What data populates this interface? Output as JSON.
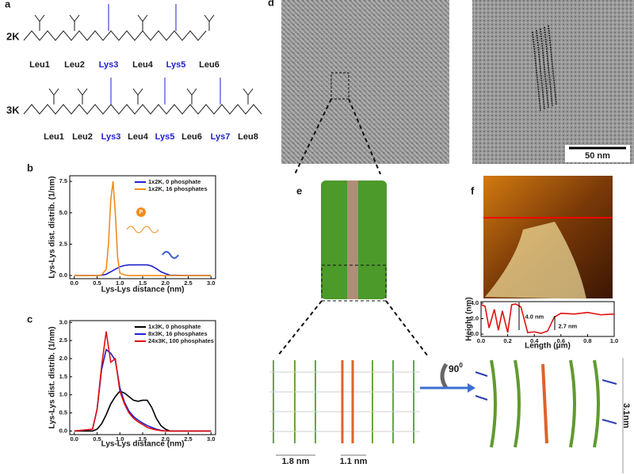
{
  "panel_labels": [
    "a",
    "b",
    "c",
    "d",
    "e",
    "f"
  ],
  "peptides": [
    {
      "name": "2K",
      "residues": [
        {
          "label": "Leu1",
          "color": "#1a1a1a"
        },
        {
          "label": "Leu2",
          "color": "#1a1a1a"
        },
        {
          "label": "Lys3",
          "color": "#1f1fd0"
        },
        {
          "label": "Leu4",
          "color": "#1a1a1a"
        },
        {
          "label": "Lys5",
          "color": "#1f1fd0"
        },
        {
          "label": "Leu6",
          "color": "#1a1a1a"
        }
      ]
    },
    {
      "name": "3K",
      "residues": [
        {
          "label": "Leu1",
          "color": "#1a1a1a"
        },
        {
          "label": "Leu2",
          "color": "#1a1a1a"
        },
        {
          "label": "Lys3",
          "color": "#1f1fd0"
        },
        {
          "label": "Leu4",
          "color": "#1a1a1a"
        },
        {
          "label": "Lys5",
          "color": "#1f1fd0"
        },
        {
          "label": "Leu6",
          "color": "#1a1a1a"
        },
        {
          "label": "Lys7",
          "color": "#1f1fd0"
        },
        {
          "label": "Leu8",
          "color": "#1a1a1a"
        }
      ]
    }
  ],
  "phosphate_icon": "P",
  "scale_bar": "50 nm",
  "model_annotations": {
    "rotation": "90",
    "rotation_degree": "0",
    "width_1": "1.8 nm",
    "width_2": "1.1 nm",
    "height": "3.1nm"
  },
  "chart_data": [
    {
      "type": "line",
      "ylabel": "Lys-Lys dist. distrib. (1/nm)",
      "xlabel": "Lys-Lys distance (nm)",
      "legend": "upper right",
      "xlim": [
        -0.1,
        3.1
      ],
      "ylim": [
        -0.25,
        7.95
      ],
      "xticks": [
        {
          "value": 0,
          "label": "0.0"
        },
        {
          "value": 0.5,
          "label": "0.5"
        },
        {
          "value": 1,
          "label": "1.0"
        },
        {
          "value": 1.5,
          "label": "1.5"
        },
        {
          "value": 2,
          "label": "2.0"
        },
        {
          "value": 2.5,
          "label": "2.5"
        },
        {
          "value": 3,
          "label": "3.0"
        }
      ],
      "yticks": [
        {
          "value": 0,
          "label": "0.0"
        },
        2.5,
        {
          "value": 5,
          "label": "5.0"
        },
        7.5
      ],
      "x": [
        0,
        0.5,
        0.6,
        0.7,
        0.75,
        0.8,
        0.85,
        0.9,
        0.95,
        1.0,
        1.1,
        1.2,
        1.4,
        1.6,
        1.7,
        1.8,
        1.9,
        2.0,
        2.1,
        2.5,
        3.0
      ],
      "series": [
        {
          "name": "1x2K, 0 phosphate",
          "color": "#1f1fd0",
          "values": [
            0,
            0,
            0.02,
            0.1,
            0.2,
            0.3,
            0.4,
            0.5,
            0.6,
            0.7,
            0.8,
            0.85,
            0.85,
            0.85,
            0.75,
            0.55,
            0.3,
            0.15,
            0.03,
            0,
            0
          ]
        },
        {
          "name": "1x2K, 16 phosphates",
          "color": "#f28c1c",
          "values": [
            0,
            0,
            0.05,
            0.5,
            2.5,
            6,
            7.5,
            5,
            1.5,
            0.2,
            0.05,
            0,
            0,
            0,
            0,
            0,
            0,
            0,
            0,
            0,
            0
          ]
        }
      ]
    },
    {
      "type": "line",
      "ylabel": "Lys-Lys dist. distrib. (1/nm)",
      "xlabel": "Lys-Lys distance (nm)",
      "legend": "upper right",
      "xlim": [
        -0.1,
        3.1
      ],
      "ylim": [
        -0.1,
        3.05
      ],
      "xticks": [
        {
          "value": 0,
          "label": "0.0"
        },
        {
          "value": 0.5,
          "label": "0.5"
        },
        {
          "value": 1,
          "label": "1.0"
        },
        {
          "value": 1.5,
          "label": "1.5"
        },
        {
          "value": 2,
          "label": "2.0"
        },
        {
          "value": 2.5,
          "label": "2.5"
        },
        {
          "value": 3,
          "label": "3.0"
        }
      ],
      "yticks": [
        {
          "value": 0,
          "label": "0.0"
        },
        0.5,
        {
          "value": 1,
          "label": "1.0"
        },
        1.5,
        {
          "value": 2,
          "label": "2.0"
        },
        2.5,
        {
          "value": 3,
          "label": "3.0"
        }
      ],
      "x": [
        0,
        0.4,
        0.5,
        0.6,
        0.7,
        0.8,
        0.9,
        1.0,
        1.1,
        1.2,
        1.3,
        1.4,
        1.5,
        1.6,
        1.7,
        1.8,
        1.9,
        2.0,
        2.1,
        2.5,
        3.0
      ],
      "series": [
        {
          "name": "1x3K, 0 phosphate",
          "color": "#000000",
          "values": [
            0,
            0,
            0.05,
            0.2,
            0.45,
            0.75,
            0.95,
            1.1,
            1.05,
            0.95,
            0.85,
            0.82,
            0.85,
            0.85,
            0.65,
            0.35,
            0.15,
            0.05,
            0,
            0,
            0
          ]
        },
        {
          "name": "8x3K, 16 phosphates",
          "color": "#1f1fd0",
          "values": [
            0,
            0.05,
            0.6,
            1.7,
            2.25,
            2.15,
            1.95,
            1.2,
            0.8,
            0.55,
            0.4,
            0.3,
            0.22,
            0.15,
            0.1,
            0.05,
            0.02,
            0,
            0,
            0,
            0
          ]
        },
        {
          "name": "24x3K, 100 phosphates",
          "color": "#e01010",
          "values": [
            0,
            0.05,
            0.6,
            1.8,
            2.75,
            1.9,
            2.0,
            1.1,
            0.75,
            0.5,
            0.35,
            0.25,
            0.18,
            0.1,
            0.06,
            0.03,
            0.01,
            0,
            0,
            0,
            0
          ]
        }
      ]
    },
    {
      "type": "line",
      "ylabel": "Height (nm)",
      "xlabel": "Length (μm)",
      "xlim": [
        0,
        1.0
      ],
      "ylim": [
        -0.3,
        4.2
      ],
      "xticks": [
        {
          "value": 0,
          "label": "0.0"
        },
        0.2,
        0.4,
        0.6,
        0.8,
        {
          "value": 1,
          "label": "1.0"
        }
      ],
      "yticks": [
        {
          "value": 0,
          "label": "0.0"
        },
        {
          "value": 2,
          "label": "2.0"
        },
        {
          "value": 4,
          "label": "4.0"
        }
      ],
      "x": [
        0,
        0.03,
        0.06,
        0.1,
        0.13,
        0.16,
        0.2,
        0.23,
        0.26,
        0.3,
        0.35,
        0.4,
        0.45,
        0.5,
        0.55,
        0.6,
        0.7,
        0.8,
        0.9,
        1.0
      ],
      "series": [
        {
          "color": "#e01010",
          "values": [
            3.8,
            3.6,
            0.8,
            3.2,
            0.5,
            3.0,
            0.2,
            3.8,
            3.9,
            3.5,
            0.2,
            0.3,
            0.1,
            0.4,
            2.2,
            2.7,
            2.6,
            2.8,
            2.5,
            2.6
          ]
        }
      ],
      "annotations": [
        "4.0 nm",
        "2.7 nm"
      ]
    }
  ]
}
